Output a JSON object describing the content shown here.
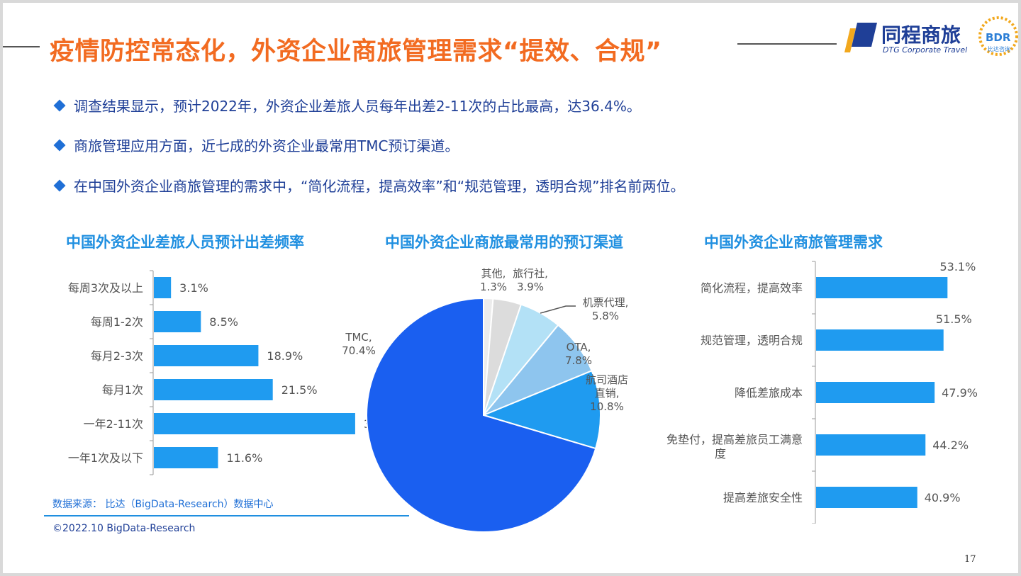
{
  "title": "疫情防控常态化，外资企业商旅管理需求“提效、合规”",
  "logo": {
    "cn": "同程商旅",
    "en": "DTG Corporate Travel",
    "bdr": "BDR",
    "bdr_sub": "比达咨询"
  },
  "bullets": [
    "调查结果显示，预计2022年，外资企业差旅人员每年出差2-11次的占比最高，达36.4%。",
    "商旅管理应用方面，近七成的外资企业最常用TMC预订渠道。",
    "在中国外资企业商旅管理的需求中，“简化流程，提高效率”和“规范管理，透明合规”排名前两位。"
  ],
  "colors": {
    "title": "#f26b21",
    "bar": "#1f9bf0",
    "text_dark": "#1f3f97",
    "chart_title": "#1f8fe0"
  },
  "chart_data": [
    {
      "type": "bar",
      "orientation": "horizontal",
      "title": "中国外资企业差旅人员预计出差频率",
      "categories": [
        "每周3次及以上",
        "每周1-2次",
        "每月2-3次",
        "每月1次",
        "一年2-11次",
        "一年1次及以下"
      ],
      "values": [
        3.1,
        8.5,
        18.9,
        21.5,
        36.4,
        11.6
      ],
      "value_labels": [
        "3.1%",
        "8.5%",
        "18.9%",
        "21.5%",
        "36.4%",
        "11.6%"
      ],
      "xlim": [
        0,
        40
      ]
    },
    {
      "type": "pie",
      "title": "中国外资企业商旅最常用的预订渠道",
      "slices": [
        {
          "label": "其他,",
          "pct_label": "1.3%",
          "value": 1.3,
          "color": "#ececec"
        },
        {
          "label": "旅行社,",
          "pct_label": "3.9%",
          "value": 3.9,
          "color": "#dcdcdc"
        },
        {
          "label": "机票代理,",
          "pct_label": "5.8%",
          "value": 5.8,
          "color": "#b3e1f6"
        },
        {
          "label": "OTA,",
          "pct_label": "7.8%",
          "value": 7.8,
          "color": "#8ec5ee"
        },
        {
          "label": "航司酒店直销,",
          "pct_label": "10.8%",
          "value": 10.8,
          "color": "#1f9bf0"
        },
        {
          "label": "TMC,",
          "pct_label": "70.4%",
          "value": 70.4,
          "color": "#1a5ff0"
        }
      ]
    },
    {
      "type": "bar",
      "orientation": "horizontal",
      "title": "中国外资企业商旅管理需求",
      "categories": [
        "简化流程，提高效率",
        "规范管理，透明合规",
        "降低差旅成本",
        "免垫付，提高差旅员工满意度",
        "提高差旅安全性"
      ],
      "values": [
        53.1,
        51.5,
        47.9,
        44.2,
        40.9
      ],
      "value_labels": [
        "53.1%",
        "51.5%",
        "47.9%",
        "44.2%",
        "40.9%"
      ],
      "xlim": [
        0,
        60
      ]
    }
  ],
  "source": "数据来源： 比达（BigData-Research）数据中心",
  "copyright": "©2022.10 BigData-Research",
  "page_number": "17"
}
